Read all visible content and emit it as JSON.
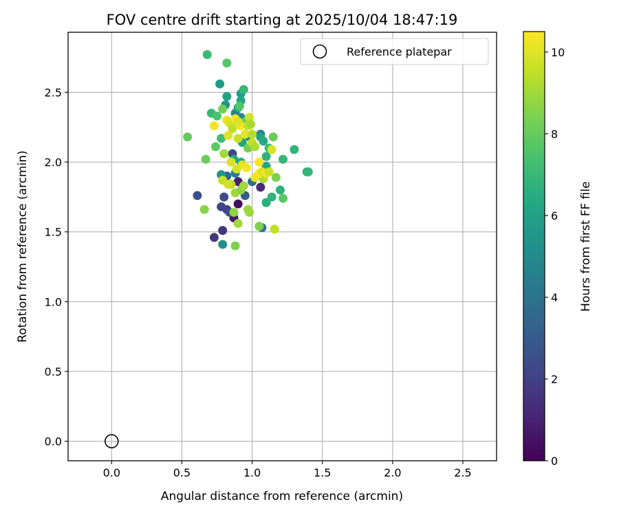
{
  "chart_data": {
    "type": "scatter",
    "title": "FOV centre drift starting at 2025/10/04 18:47:19",
    "xlabel": "Angular distance from reference (arcmin)",
    "ylabel": "Rotation from reference (arcmin)",
    "xlim": [
      -0.31,
      2.74
    ],
    "ylim": [
      -0.14,
      2.93
    ],
    "xticks": [
      0.0,
      0.5,
      1.0,
      1.5,
      2.0,
      2.5
    ],
    "yticks": [
      0.0,
      0.5,
      1.0,
      1.5,
      2.0,
      2.5
    ],
    "xtick_labels": [
      "0.0",
      "0.5",
      "1.0",
      "1.5",
      "2.0",
      "2.5"
    ],
    "ytick_labels": [
      "0.0",
      "0.5",
      "1.0",
      "1.5",
      "2.0",
      "2.5"
    ],
    "grid": true,
    "legend": {
      "position": "top-right",
      "entries": [
        "Reference platepar"
      ]
    },
    "reference": {
      "x": 0.0,
      "y": 0.0,
      "label": "Reference platepar"
    },
    "colorbar": {
      "label": "Hours from first FF file",
      "range": [
        0,
        10.5
      ],
      "ticks": [
        0,
        2,
        4,
        6,
        8,
        10
      ],
      "tick_labels": [
        "0",
        "2",
        "4",
        "6",
        "8",
        "10"
      ],
      "colormap": "viridis"
    },
    "points": [
      {
        "x": 0.9,
        "y": 1.7,
        "c": 0.4
      },
      {
        "x": 0.87,
        "y": 1.6,
        "c": 0.7
      },
      {
        "x": 0.9,
        "y": 1.86,
        "c": 0.9
      },
      {
        "x": 1.06,
        "y": 1.82,
        "c": 1.3
      },
      {
        "x": 0.73,
        "y": 1.46,
        "c": 1.7
      },
      {
        "x": 0.79,
        "y": 1.51,
        "c": 1.6
      },
      {
        "x": 0.82,
        "y": 1.66,
        "c": 1.9
      },
      {
        "x": 0.78,
        "y": 1.68,
        "c": 2.2
      },
      {
        "x": 0.8,
        "y": 1.75,
        "c": 2.4
      },
      {
        "x": 0.61,
        "y": 1.76,
        "c": 2.6
      },
      {
        "x": 0.84,
        "y": 1.64,
        "c": 2.5
      },
      {
        "x": 0.86,
        "y": 2.06,
        "c": 2.3
      },
      {
        "x": 0.95,
        "y": 1.76,
        "c": 3.0
      },
      {
        "x": 1.1,
        "y": 1.71,
        "c": 3.3
      },
      {
        "x": 0.82,
        "y": 1.9,
        "c": 3.5
      },
      {
        "x": 1.0,
        "y": 1.86,
        "c": 3.7
      },
      {
        "x": 1.07,
        "y": 1.53,
        "c": 4.0
      },
      {
        "x": 0.88,
        "y": 1.92,
        "c": 4.5
      },
      {
        "x": 1.06,
        "y": 2.2,
        "c": 4.6
      },
      {
        "x": 0.88,
        "y": 2.35,
        "c": 4.8
      },
      {
        "x": 0.92,
        "y": 2.32,
        "c": 4.8
      },
      {
        "x": 0.98,
        "y": 2.18,
        "c": 4.6
      },
      {
        "x": 0.79,
        "y": 1.41,
        "c": 5.2
      },
      {
        "x": 0.78,
        "y": 1.91,
        "c": 5.3
      },
      {
        "x": 0.81,
        "y": 2.41,
        "c": 5.4
      },
      {
        "x": 0.77,
        "y": 2.56,
        "c": 5.6
      },
      {
        "x": 0.92,
        "y": 2.49,
        "c": 5.8
      },
      {
        "x": 0.82,
        "y": 2.47,
        "c": 6.0
      },
      {
        "x": 0.92,
        "y": 2.44,
        "c": 6.2
      },
      {
        "x": 0.9,
        "y": 2.39,
        "c": 6.3
      },
      {
        "x": 0.93,
        "y": 2.14,
        "c": 6.1
      },
      {
        "x": 0.92,
        "y": 2.0,
        "c": 6.5
      },
      {
        "x": 0.87,
        "y": 2.02,
        "c": 6.4
      },
      {
        "x": 1.1,
        "y": 1.97,
        "c": 6.2
      },
      {
        "x": 1.14,
        "y": 1.75,
        "c": 6.8
      },
      {
        "x": 1.1,
        "y": 1.71,
        "c": 6.6
      },
      {
        "x": 1.2,
        "y": 1.8,
        "c": 6.7
      },
      {
        "x": 1.22,
        "y": 2.02,
        "c": 6.9
      },
      {
        "x": 1.3,
        "y": 2.09,
        "c": 6.8
      },
      {
        "x": 1.39,
        "y": 1.93,
        "c": 6.7
      },
      {
        "x": 1.4,
        "y": 1.93,
        "c": 6.9
      },
      {
        "x": 1.06,
        "y": 2.18,
        "c": 6.0
      },
      {
        "x": 1.08,
        "y": 2.15,
        "c": 6.4
      },
      {
        "x": 1.1,
        "y": 2.04,
        "c": 6.7
      },
      {
        "x": 1.12,
        "y": 2.1,
        "c": 7.0
      },
      {
        "x": 0.68,
        "y": 2.77,
        "c": 7.1
      },
      {
        "x": 0.94,
        "y": 2.52,
        "c": 7.0
      },
      {
        "x": 0.71,
        "y": 2.35,
        "c": 7.0
      },
      {
        "x": 0.78,
        "y": 2.17,
        "c": 7.2
      },
      {
        "x": 0.75,
        "y": 2.33,
        "c": 7.5
      },
      {
        "x": 0.82,
        "y": 2.71,
        "c": 7.7
      },
      {
        "x": 0.91,
        "y": 2.4,
        "c": 7.6
      },
      {
        "x": 0.74,
        "y": 2.11,
        "c": 7.8
      },
      {
        "x": 0.54,
        "y": 2.18,
        "c": 8.0
      },
      {
        "x": 0.67,
        "y": 2.02,
        "c": 8.1
      },
      {
        "x": 0.79,
        "y": 2.38,
        "c": 8.2
      },
      {
        "x": 0.95,
        "y": 2.29,
        "c": 8.0
      },
      {
        "x": 0.97,
        "y": 2.1,
        "c": 8.3
      },
      {
        "x": 1.15,
        "y": 2.18,
        "c": 8.1
      },
      {
        "x": 1.17,
        "y": 1.89,
        "c": 8.4
      },
      {
        "x": 1.09,
        "y": 1.91,
        "c": 8.2
      },
      {
        "x": 1.22,
        "y": 1.74,
        "c": 7.8
      },
      {
        "x": 1.05,
        "y": 1.54,
        "c": 8.5
      },
      {
        "x": 0.66,
        "y": 1.66,
        "c": 8.6
      },
      {
        "x": 0.87,
        "y": 1.64,
        "c": 8.7
      },
      {
        "x": 0.88,
        "y": 1.4,
        "c": 8.5
      },
      {
        "x": 0.9,
        "y": 1.56,
        "c": 9.0
      },
      {
        "x": 0.98,
        "y": 1.64,
        "c": 8.8
      },
      {
        "x": 0.97,
        "y": 1.66,
        "c": 8.9
      },
      {
        "x": 1.16,
        "y": 1.52,
        "c": 9.5
      },
      {
        "x": 1.08,
        "y": 1.88,
        "c": 9.2
      },
      {
        "x": 0.88,
        "y": 1.78,
        "c": 9.0
      },
      {
        "x": 0.85,
        "y": 1.84,
        "c": 9.3
      },
      {
        "x": 0.92,
        "y": 1.8,
        "c": 8.7
      },
      {
        "x": 0.94,
        "y": 1.83,
        "c": 9.0
      },
      {
        "x": 0.79,
        "y": 1.87,
        "c": 9.6
      },
      {
        "x": 0.83,
        "y": 1.84,
        "c": 9.8
      },
      {
        "x": 0.8,
        "y": 2.06,
        "c": 9.0
      },
      {
        "x": 0.85,
        "y": 2.0,
        "c": 9.9
      },
      {
        "x": 0.89,
        "y": 1.95,
        "c": 9.8
      },
      {
        "x": 0.93,
        "y": 1.98,
        "c": 10.1
      },
      {
        "x": 0.96,
        "y": 1.96,
        "c": 10.3
      },
      {
        "x": 1.02,
        "y": 1.89,
        "c": 10.2
      },
      {
        "x": 1.05,
        "y": 1.92,
        "c": 10.4
      },
      {
        "x": 1.07,
        "y": 1.93,
        "c": 10.0
      },
      {
        "x": 1.1,
        "y": 1.92,
        "c": 10.3
      },
      {
        "x": 1.12,
        "y": 1.93,
        "c": 9.7
      },
      {
        "x": 1.05,
        "y": 2.0,
        "c": 10.5
      },
      {
        "x": 1.0,
        "y": 2.14,
        "c": 9.6
      },
      {
        "x": 1.02,
        "y": 2.11,
        "c": 9.2
      },
      {
        "x": 1.14,
        "y": 2.09,
        "c": 9.9
      },
      {
        "x": 0.73,
        "y": 2.26,
        "c": 10.3
      },
      {
        "x": 0.82,
        "y": 2.3,
        "c": 10.2
      },
      {
        "x": 0.84,
        "y": 2.28,
        "c": 9.9
      },
      {
        "x": 0.83,
        "y": 2.19,
        "c": 10.0
      },
      {
        "x": 0.86,
        "y": 2.24,
        "c": 9.5
      },
      {
        "x": 0.9,
        "y": 2.17,
        "c": 9.7
      },
      {
        "x": 0.92,
        "y": 2.26,
        "c": 10.3
      },
      {
        "x": 0.95,
        "y": 2.2,
        "c": 10.1
      },
      {
        "x": 0.97,
        "y": 2.26,
        "c": 9.6
      },
      {
        "x": 0.98,
        "y": 2.32,
        "c": 9.8
      },
      {
        "x": 1.0,
        "y": 2.2,
        "c": 9.4
      },
      {
        "x": 0.88,
        "y": 2.31,
        "c": 10.4
      },
      {
        "x": 0.9,
        "y": 2.29,
        "c": 9.9
      },
      {
        "x": 0.99,
        "y": 2.27,
        "c": 9.1
      }
    ]
  }
}
